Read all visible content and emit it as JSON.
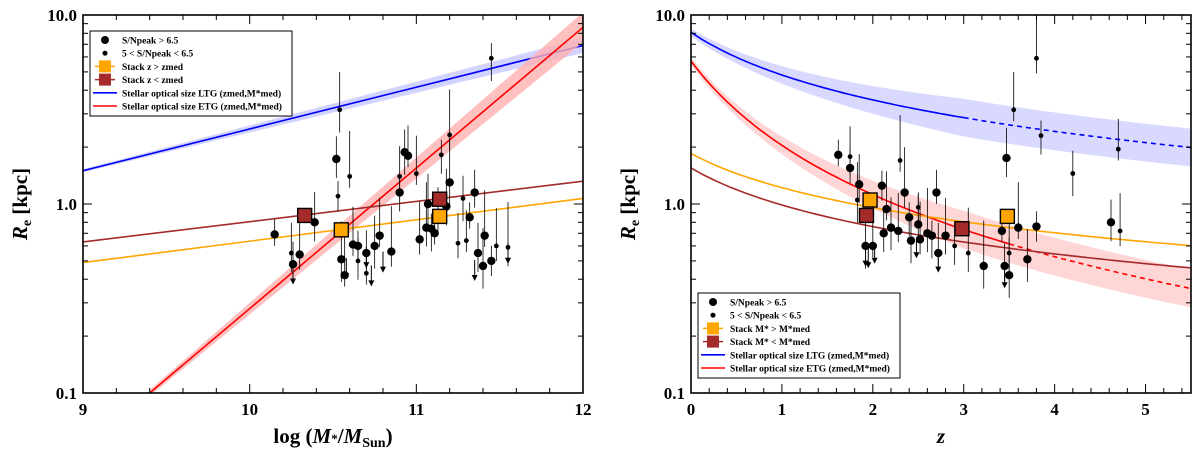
{
  "chart_data": [
    {
      "type": "scatter",
      "id": "left",
      "xlabel": "log (M*/MSun)",
      "ylabel": "Re [kpc]",
      "xlim": [
        9,
        12
      ],
      "ylim": [
        0.1,
        10
      ],
      "yscale": "log",
      "xticks": [
        9,
        10,
        11,
        12
      ],
      "xtick_labels": [
        "9",
        "10",
        "11",
        "12"
      ],
      "yticks": [
        0.1,
        1,
        10
      ],
      "ytick_labels": [
        "0.1",
        "1.0",
        "10.0"
      ],
      "legend": {
        "position": "top-left",
        "entries": [
          {
            "label": "S/Npeak > 6.5",
            "marker": "big-dot"
          },
          {
            "label": "5 < S/Npeak < 6.5",
            "marker": "small-dot"
          },
          {
            "label": "Stack z > zmed",
            "marker": "square",
            "color": "#ffa500"
          },
          {
            "label": "Stack z < zmed",
            "marker": "square",
            "color": "#a52a2a"
          },
          {
            "label": "Stellar optical size LTG (zmed,M*med)",
            "marker": "line",
            "color": "#0000ff"
          },
          {
            "label": "Stellar optical size ETG (zmed,M*med)",
            "marker": "line",
            "color": "#ff0000"
          }
        ]
      },
      "lines": [
        {
          "name": "LTG",
          "color": "#0000ff",
          "x": [
            9,
            12
          ],
          "y": [
            1.5,
            6.9
          ],
          "band": 0.02,
          "band_color": "#c8c8ff"
        },
        {
          "name": "ETG",
          "color": "#ff0000",
          "x": [
            9.4,
            12
          ],
          "y": [
            0.1,
            8.6
          ],
          "band": 0.04,
          "band_color": "#ffb0b0"
        },
        {
          "name": "Stack z < zmed fit",
          "color": "#a52a2a",
          "x": [
            9,
            12
          ],
          "y": [
            0.63,
            1.32
          ]
        },
        {
          "name": "Stack z > zmed fit",
          "color": "#ffa500",
          "x": [
            9,
            12
          ],
          "y": [
            0.49,
            1.07
          ]
        }
      ],
      "points_big": [
        [
          10.15,
          0.69
        ],
        [
          10.26,
          0.48
        ],
        [
          10.39,
          0.8
        ],
        [
          10.55,
          0.51
        ],
        [
          10.57,
          0.42
        ],
        [
          10.65,
          0.6
        ],
        [
          10.7,
          0.55
        ],
        [
          10.75,
          0.6
        ],
        [
          10.78,
          0.68
        ],
        [
          10.85,
          0.56
        ],
        [
          10.9,
          1.15
        ],
        [
          10.93,
          1.88
        ],
        [
          10.95,
          1.8
        ],
        [
          11.02,
          0.65
        ],
        [
          11.06,
          0.75
        ],
        [
          11.09,
          0.74
        ],
        [
          11.11,
          0.7
        ],
        [
          11.13,
          0.85
        ],
        [
          11.18,
          0.97
        ],
        [
          11.2,
          1.3
        ],
        [
          11.32,
          0.85
        ],
        [
          11.35,
          1.15
        ],
        [
          11.37,
          0.55
        ],
        [
          11.4,
          0.47
        ],
        [
          11.41,
          0.68
        ],
        [
          11.45,
          0.5
        ],
        [
          10.52,
          1.73
        ],
        [
          11.07,
          1.0
        ],
        [
          10.62,
          0.61
        ],
        [
          10.3,
          0.54
        ]
      ],
      "points_small": [
        [
          10.25,
          0.55
        ],
        [
          10.54,
          3.15
        ],
        [
          10.6,
          1.4
        ],
        [
          10.53,
          1.1
        ],
        [
          10.65,
          0.5
        ],
        [
          10.9,
          1.4
        ],
        [
          11.0,
          1.45
        ],
        [
          11.2,
          2.32
        ],
        [
          11.15,
          1.82
        ],
        [
          11.28,
          1.07
        ],
        [
          11.3,
          0.64
        ],
        [
          11.48,
          0.6
        ],
        [
          11.55,
          0.59
        ],
        [
          11.45,
          5.9
        ],
        [
          10.7,
          0.43
        ],
        [
          11.25,
          0.62
        ]
      ],
      "upper_limits": [
        [
          10.26,
          0.45
        ],
        [
          10.58,
          0.48
        ],
        [
          10.7,
          0.55
        ],
        [
          10.8,
          0.52
        ],
        [
          11.35,
          0.47
        ],
        [
          11.55,
          0.58
        ],
        [
          10.73,
          0.44
        ]
      ],
      "stacks": [
        {
          "x": 10.33,
          "y": 0.87,
          "color": "#a52a2a"
        },
        {
          "x": 10.55,
          "y": 0.73,
          "color": "#ffa500"
        },
        {
          "x": 11.14,
          "y": 1.06,
          "color": "#a52a2a"
        },
        {
          "x": 11.14,
          "y": 0.86,
          "color": "#ffa500"
        }
      ]
    },
    {
      "type": "scatter",
      "id": "right",
      "xlabel": "z",
      "ylabel": "Re [kpc]",
      "xlim": [
        0,
        5.5
      ],
      "ylim": [
        0.1,
        10
      ],
      "yscale": "log",
      "xticks": [
        0,
        1,
        2,
        3,
        4,
        5
      ],
      "xtick_labels": [
        "0",
        "1",
        "2",
        "3",
        "4",
        "5"
      ],
      "yticks": [
        0.1,
        1,
        10
      ],
      "ytick_labels": [
        "0.1",
        "1.0",
        "10.0"
      ],
      "legend": {
        "position": "bottom-left",
        "entries": [
          {
            "label": "S/Npeak > 6.5",
            "marker": "big-dot"
          },
          {
            "label": "5 < S/Npeak < 6.5",
            "marker": "small-dot"
          },
          {
            "label": "Stack M* > M*med",
            "marker": "square",
            "color": "#ffa500"
          },
          {
            "label": "Stack M* < M*med",
            "marker": "square",
            "color": "#a52a2a"
          },
          {
            "label": "Stellar optical size LTG (zmed,M*med)",
            "marker": "line",
            "color": "#0000ff"
          },
          {
            "label": "Stellar optical size ETG (zmed,M*med)",
            "marker": "line",
            "color": "#ff0000"
          }
        ]
      },
      "curves": [
        {
          "name": "LTG",
          "color": "#0000ff",
          "A": 8.1,
          "alpha": 0.75,
          "solid_until": 3.0,
          "band": 0.1,
          "band_color": "#ccccff"
        },
        {
          "name": "ETG",
          "color": "#ff0000",
          "A": 5.7,
          "alpha": 1.48,
          "solid_until": 3.5,
          "band": 0.1,
          "band_color": "#ffc8c8"
        },
        {
          "name": "Stack M* > M*med fit",
          "color": "#ffa500",
          "A": 1.85,
          "alpha": 0.6
        },
        {
          "name": "Stack M* < M*med fit",
          "color": "#a52a2a",
          "A": 1.55,
          "alpha": 0.65
        }
      ],
      "points_big": [
        [
          1.62,
          1.82
        ],
        [
          1.75,
          1.55
        ],
        [
          1.85,
          1.27
        ],
        [
          1.92,
          0.6
        ],
        [
          2.0,
          0.6
        ],
        [
          2.1,
          1.25
        ],
        [
          2.12,
          0.7
        ],
        [
          2.2,
          0.75
        ],
        [
          2.28,
          0.72
        ],
        [
          2.35,
          1.15
        ],
        [
          2.4,
          0.85
        ],
        [
          2.42,
          0.64
        ],
        [
          2.5,
          0.78
        ],
        [
          2.52,
          0.65
        ],
        [
          2.6,
          0.7
        ],
        [
          2.65,
          0.68
        ],
        [
          2.7,
          1.15
        ],
        [
          2.72,
          0.55
        ],
        [
          2.8,
          0.68
        ],
        [
          3.22,
          0.47
        ],
        [
          3.42,
          0.72
        ],
        [
          3.45,
          0.47
        ],
        [
          3.47,
          1.75
        ],
        [
          3.5,
          0.42
        ],
        [
          3.6,
          0.75
        ],
        [
          3.8,
          0.76
        ],
        [
          4.62,
          0.8
        ],
        [
          3.7,
          0.51
        ],
        [
          2.15,
          0.94
        ]
      ],
      "points_small": [
        [
          1.75,
          1.78
        ],
        [
          1.83,
          1.05
        ],
        [
          2.3,
          1.7
        ],
        [
          2.5,
          0.96
        ],
        [
          2.9,
          0.6
        ],
        [
          3.5,
          0.55
        ],
        [
          3.55,
          3.15
        ],
        [
          3.8,
          5.9
        ],
        [
          3.85,
          2.3
        ],
        [
          4.2,
          1.45
        ],
        [
          4.7,
          1.95
        ],
        [
          4.72,
          0.72
        ],
        [
          3.05,
          0.55
        ]
      ],
      "upper_limits": [
        [
          1.92,
          0.56
        ],
        [
          2.02,
          0.58
        ],
        [
          2.48,
          0.62
        ],
        [
          2.72,
          0.52
        ],
        [
          3.45,
          0.43
        ],
        [
          1.95,
          0.55
        ]
      ],
      "stacks": [
        {
          "x": 1.93,
          "y": 0.87,
          "color": "#a52a2a"
        },
        {
          "x": 1.97,
          "y": 1.05,
          "color": "#ffa500"
        },
        {
          "x": 2.98,
          "y": 0.74,
          "color": "#a52a2a"
        },
        {
          "x": 3.48,
          "y": 0.86,
          "color": "#ffa500"
        }
      ]
    }
  ]
}
